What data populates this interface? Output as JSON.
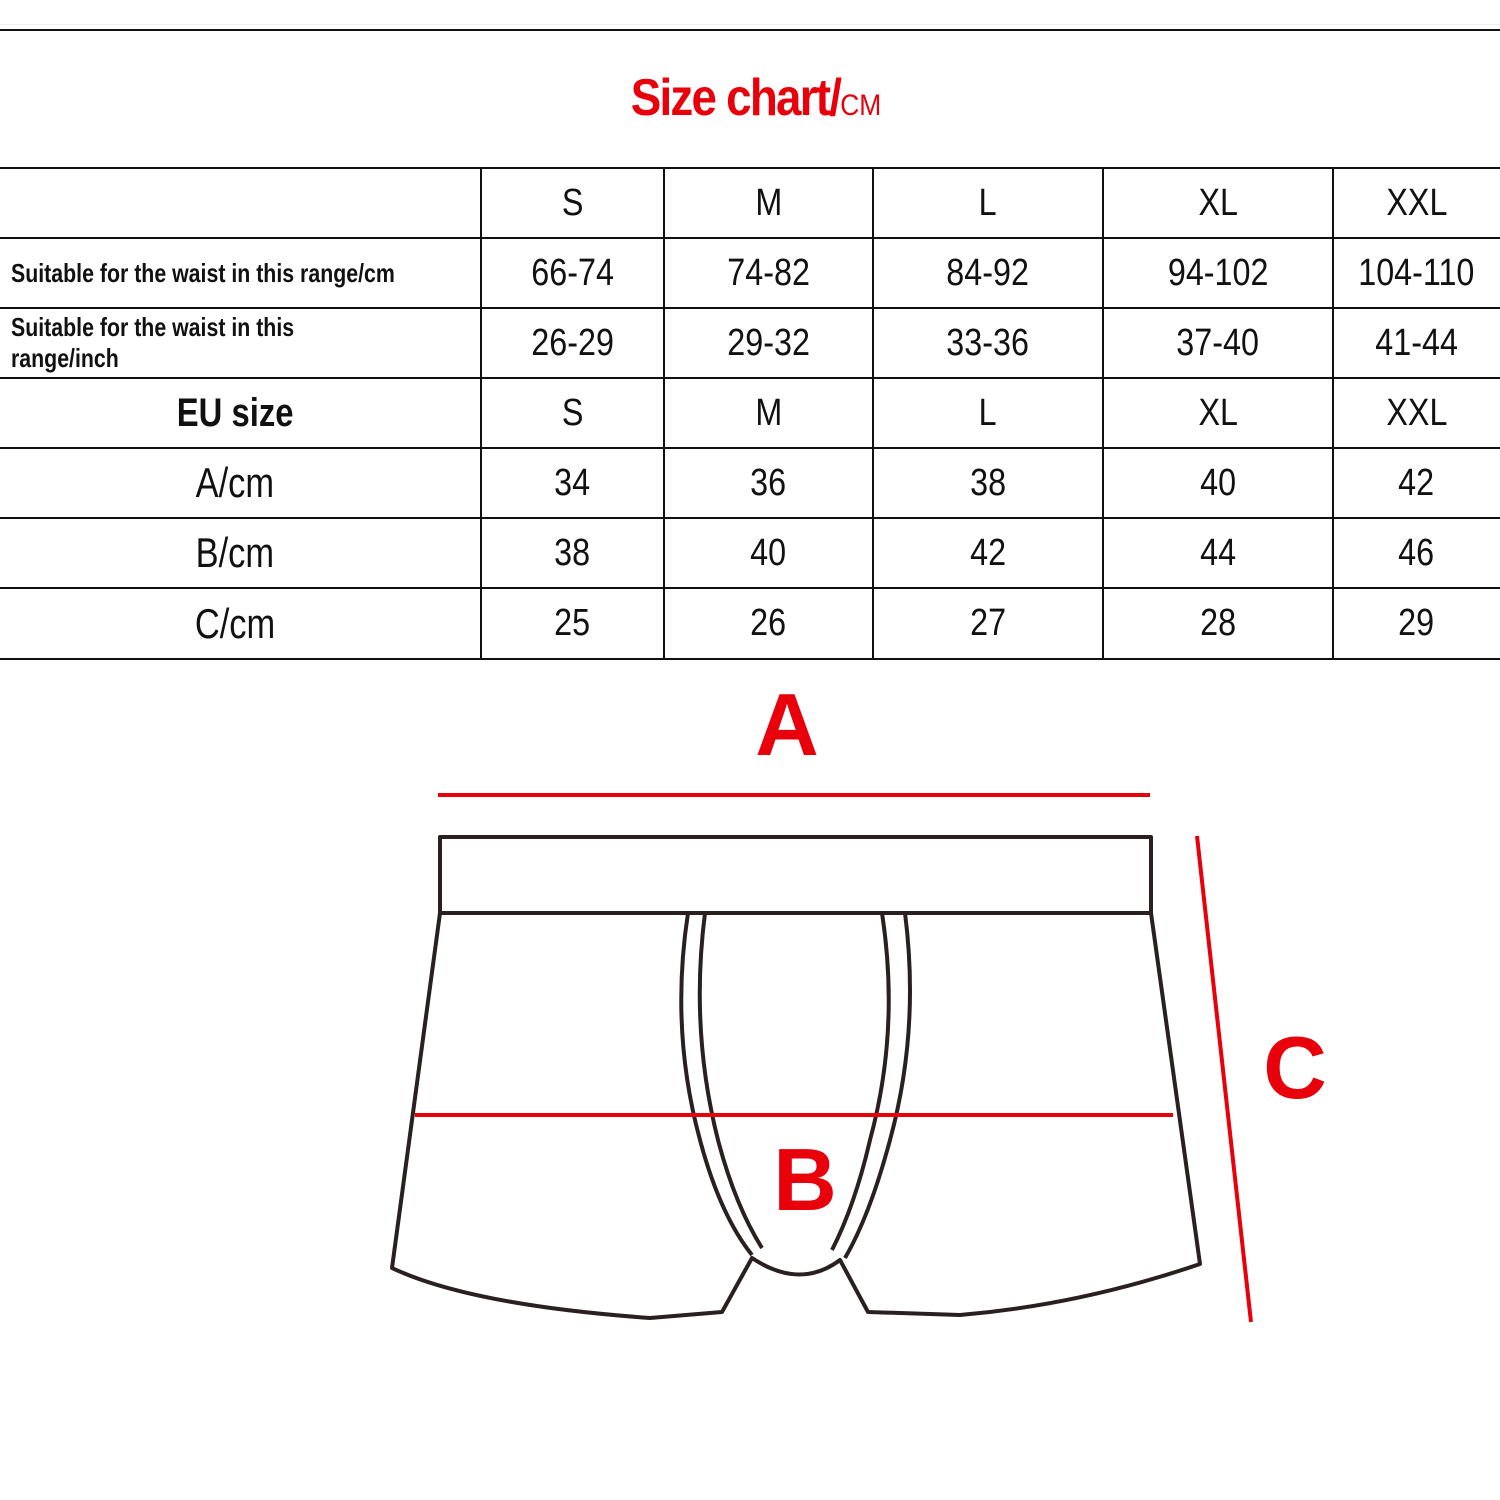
{
  "title": {
    "main": "Size chart/",
    "unit": "CM"
  },
  "table": {
    "header": [
      "",
      "S",
      "M",
      "L",
      "XL",
      "XXL"
    ],
    "rows": [
      {
        "label": "Suitable for the waist in this range/cm",
        "values": [
          "66-74",
          "74-82",
          "84-92",
          "94-102",
          "104-110"
        ]
      },
      {
        "label": "Suitable for the waist in this range/inch",
        "values": [
          "26-29",
          "29-32",
          "33-36",
          "37-40",
          "41-44"
        ]
      },
      {
        "label": "EU size",
        "values": [
          "S",
          "M",
          "L",
          "XL",
          "XXL"
        ]
      },
      {
        "label": "A/cm",
        "values": [
          "34",
          "36",
          "38",
          "40",
          "42"
        ]
      },
      {
        "label": "B/cm",
        "values": [
          "38",
          "40",
          "42",
          "44",
          "46"
        ]
      },
      {
        "label": "C/cm",
        "values": [
          "25",
          "26",
          "27",
          "28",
          "29"
        ]
      }
    ]
  },
  "diagram": {
    "labels": {
      "a": "A",
      "b": "B",
      "c": "C"
    },
    "colors": {
      "measure": "#e8000b",
      "outline": "#2a2020"
    }
  }
}
